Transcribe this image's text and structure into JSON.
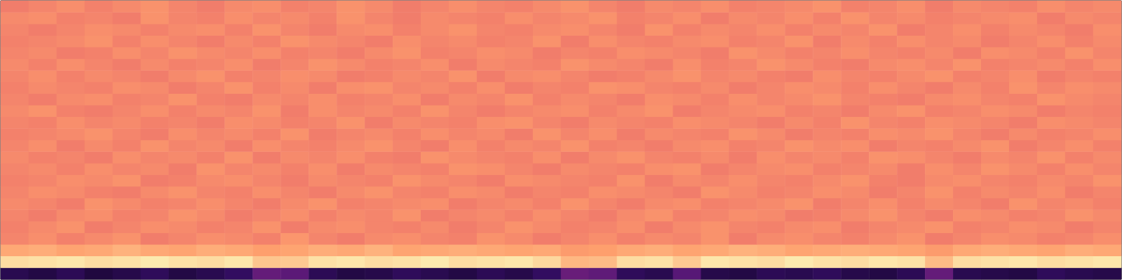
{
  "chart_data": {
    "type": "heatmap",
    "tick_labels": false,
    "zlim": [
      0,
      100
    ],
    "cells": [
      [
        14,
        12,
        15,
        11,
        13,
        16,
        12,
        14,
        17,
        30,
        28,
        15,
        12,
        13,
        16,
        14,
        12,
        15,
        13,
        17,
        31,
        29,
        16,
        14,
        27,
        13,
        12,
        15,
        14,
        16,
        13,
        12,
        15,
        30,
        14,
        13,
        12,
        16,
        14,
        13
      ],
      [
        93,
        94,
        95,
        93,
        94,
        96,
        94,
        93,
        95,
        88,
        89,
        94,
        95,
        93,
        94,
        96,
        93,
        94,
        95,
        92,
        85,
        86,
        93,
        94,
        89,
        95,
        94,
        93,
        96,
        94,
        93,
        95,
        94,
        86,
        93,
        94,
        95,
        93,
        94,
        95
      ],
      [
        82,
        83,
        81,
        82,
        84,
        82,
        81,
        83,
        82,
        80,
        81,
        83,
        82,
        84,
        81,
        82,
        83,
        82,
        81,
        82,
        79,
        80,
        82,
        83,
        81,
        82,
        84,
        83,
        81,
        82,
        83,
        82,
        81,
        79,
        82,
        83,
        82,
        81,
        83,
        82
      ],
      [
        74,
        76,
        73,
        75,
        77,
        72,
        74,
        76,
        75,
        73,
        78,
        74,
        72,
        75,
        76,
        74,
        73,
        77,
        75,
        72,
        74,
        76,
        73,
        75,
        74,
        77,
        72,
        75,
        76,
        74,
        73,
        75,
        77,
        72,
        74,
        76,
        75,
        73,
        74,
        76
      ],
      [
        73,
        75,
        77,
        72,
        74,
        76,
        75,
        73,
        74,
        77,
        72,
        75,
        76,
        74,
        73,
        75,
        72,
        74,
        77,
        75,
        73,
        74,
        76,
        72,
        75,
        77,
        74,
        73,
        75,
        76,
        72,
        74,
        75,
        77,
        73,
        74,
        76,
        75,
        72,
        74
      ],
      [
        74,
        72,
        75,
        76,
        73,
        74,
        77,
        75,
        72,
        74,
        76,
        73,
        75,
        74,
        77,
        72,
        74,
        75,
        73,
        76,
        74,
        72,
        75,
        77,
        73,
        74,
        76,
        75,
        72,
        73,
        75,
        77,
        74,
        72,
        76,
        75,
        73,
        74,
        77,
        75
      ],
      [
        75,
        74,
        72,
        77,
        75,
        73,
        74,
        76,
        74,
        72,
        75,
        77,
        73,
        74,
        75,
        76,
        72,
        74,
        75,
        73,
        77,
        74,
        72,
        75,
        76,
        73,
        74,
        75,
        77,
        72,
        74,
        76,
        73,
        75,
        74,
        72,
        77,
        74,
        75,
        73
      ],
      [
        74,
        76,
        75,
        73,
        72,
        75,
        77,
        74,
        73,
        76,
        74,
        72,
        75,
        77,
        74,
        73,
        76,
        75,
        72,
        74,
        73,
        76,
        75,
        74,
        72,
        77,
        75,
        73,
        74,
        76,
        75,
        72,
        74,
        77,
        73,
        75,
        74,
        76,
        72,
        74
      ],
      [
        73,
        74,
        76,
        75,
        77,
        72,
        73,
        75,
        76,
        74,
        72,
        75,
        74,
        73,
        77,
        75,
        74,
        72,
        76,
        75,
        74,
        73,
        77,
        72,
        75,
        74,
        76,
        74,
        73,
        75,
        77,
        73,
        72,
        75,
        76,
        74,
        73,
        75,
        74,
        77
      ],
      [
        74,
        75,
        73,
        76,
        74,
        75,
        72,
        77,
        74,
        75,
        73,
        76,
        72,
        75,
        74,
        73,
        77,
        76,
        74,
        72,
        75,
        74,
        73,
        76,
        77,
        72,
        74,
        75,
        76,
        73,
        74,
        75,
        72,
        76,
        74,
        77,
        75,
        73,
        76,
        74
      ],
      [
        75,
        73,
        74,
        72,
        76,
        74,
        75,
        73,
        77,
        72,
        75,
        74,
        76,
        73,
        72,
        77,
        75,
        74,
        73,
        76,
        72,
        75,
        77,
        74,
        73,
        75,
        72,
        76,
        74,
        75,
        73,
        77,
        76,
        74,
        72,
        75,
        74,
        77,
        73,
        75
      ],
      [
        74,
        76,
        72,
        75,
        73,
        77,
        74,
        75,
        72,
        76,
        74,
        73,
        75,
        77,
        74,
        72,
        76,
        73,
        75,
        74,
        77,
        73,
        74,
        72,
        75,
        76,
        73,
        74,
        77,
        75,
        76,
        72,
        74,
        73,
        75,
        77,
        72,
        74,
        76,
        73
      ],
      [
        73,
        74,
        75,
        77,
        74,
        72,
        76,
        74,
        75,
        73,
        77,
        72,
        74,
        75,
        73,
        76,
        74,
        75,
        72,
        77,
        74,
        76,
        72,
        75,
        74,
        73,
        77,
        75,
        72,
        74,
        73,
        76,
        75,
        77,
        74,
        72,
        75,
        73,
        74,
        76
      ],
      [
        74,
        73,
        76,
        74,
        75,
        73,
        74,
        72,
        76,
        75,
        73,
        74,
        77,
        72,
        75,
        74,
        73,
        76,
        77,
        74,
        72,
        75,
        74,
        73,
        76,
        75,
        74,
        72,
        75,
        73,
        77,
        74,
        73,
        76,
        75,
        74,
        72,
        76,
        75,
        74
      ],
      [
        75,
        77,
        73,
        72,
        74,
        76,
        73,
        75,
        74,
        77,
        72,
        76,
        74,
        75,
        73,
        77,
        74,
        72,
        74,
        75,
        76,
        73,
        75,
        77,
        72,
        74,
        75,
        76,
        73,
        74,
        72,
        75,
        77,
        73,
        74,
        76,
        75,
        72,
        74,
        73
      ],
      [
        74,
        72,
        75,
        76,
        73,
        74,
        77,
        73,
        72,
        75,
        74,
        76,
        73,
        74,
        76,
        72,
        75,
        74,
        77,
        73,
        75,
        74,
        72,
        76,
        75,
        73,
        76,
        74,
        75,
        77,
        74,
        73,
        72,
        75,
        76,
        74,
        73,
        77,
        75,
        74
      ],
      [
        73,
        75,
        74,
        73,
        76,
        75,
        72,
        74,
        77,
        73,
        75,
        72,
        76,
        77,
        74,
        75,
        73,
        76,
        72,
        74,
        73,
        77,
        76,
        74,
        73,
        75,
        72,
        74,
        76,
        75,
        73,
        76,
        74,
        72,
        75,
        73,
        77,
        74,
        76,
        75
      ],
      [
        74,
        76,
        73,
        75,
        74,
        72,
        75,
        77,
        73,
        74,
        76,
        75,
        72,
        73,
        75,
        74,
        77,
        72,
        75,
        76,
        74,
        72,
        73,
        75,
        77,
        74,
        75,
        73,
        72,
        76,
        74,
        73,
        75,
        77,
        73,
        74,
        76,
        72,
        74,
        73
      ],
      [
        75,
        73,
        76,
        74,
        72,
        75,
        73,
        74,
        76,
        72,
        74,
        77,
        75,
        73,
        74,
        76,
        72,
        75,
        74,
        73,
        77,
        75,
        74,
        72,
        76,
        73,
        74,
        77,
        75,
        73,
        72,
        75,
        76,
        74,
        77,
        73,
        74,
        75,
        73,
        76
      ],
      [
        74,
        75,
        72,
        73,
        76,
        74,
        77,
        75,
        74,
        76,
        73,
        74,
        72,
        75,
        77,
        73,
        74,
        76,
        75,
        72,
        74,
        73,
        76,
        75,
        74,
        72,
        77,
        75,
        73,
        74,
        76,
        74,
        73,
        75,
        72,
        76,
        75,
        73,
        77,
        74
      ],
      [
        73,
        74,
        75,
        77,
        73,
        76,
        74,
        72,
        75,
        73,
        77,
        75,
        74,
        72,
        76,
        74,
        75,
        73,
        74,
        77,
        72,
        76,
        74,
        73,
        75,
        76,
        73,
        74,
        77,
        72,
        75,
        73,
        76,
        74,
        75,
        72,
        74,
        76,
        73,
        75
      ],
      [
        74,
        72,
        74,
        76,
        75,
        73,
        75,
        76,
        73,
        77,
        74,
        72,
        75,
        76,
        73,
        75,
        77,
        74,
        73,
        75,
        76,
        74,
        72,
        77,
        73,
        75,
        74,
        76,
        73,
        75,
        74,
        77,
        72,
        74,
        76,
        73,
        75,
        74,
        72,
        76
      ],
      [
        75,
        76,
        73,
        74,
        72,
        77,
        74,
        73,
        76,
        74,
        75,
        73,
        77,
        74,
        72,
        75,
        74,
        73,
        76,
        74,
        75,
        77,
        73,
        74,
        76,
        72,
        75,
        74,
        76,
        73,
        77,
        74,
        75,
        73,
        74,
        75,
        76,
        72,
        75,
        74
      ],
      [
        72,
        74,
        76,
        73,
        75,
        77,
        74,
        72,
        75,
        76,
        73,
        74,
        77,
        75,
        72,
        74,
        76,
        74,
        73,
        75,
        77,
        74,
        72,
        75,
        74,
        76,
        73,
        74,
        75,
        77,
        73,
        74,
        76,
        72,
        75,
        74,
        73,
        76,
        74,
        75
      ]
    ]
  }
}
